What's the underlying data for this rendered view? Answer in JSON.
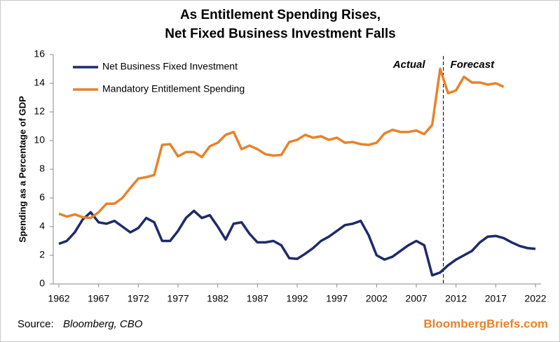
{
  "chart_data": {
    "type": "line",
    "title": [
      "As Entitlement Spending Rises,",
      "Net Fixed Business Investment Falls"
    ],
    "y_label": "Spending as a Percentage of GDP",
    "x": [
      1962,
      1963,
      1964,
      1965,
      1966,
      1967,
      1968,
      1969,
      1970,
      1971,
      1972,
      1973,
      1974,
      1975,
      1976,
      1977,
      1978,
      1979,
      1980,
      1981,
      1982,
      1983,
      1984,
      1985,
      1986,
      1987,
      1988,
      1989,
      1990,
      1991,
      1992,
      1993,
      1994,
      1995,
      1996,
      1997,
      1998,
      1999,
      2000,
      2001,
      2002,
      2003,
      2004,
      2005,
      2006,
      2007,
      2008,
      2009,
      2010,
      2011,
      2012,
      2013,
      2014,
      2015,
      2016,
      2017,
      2018,
      2019,
      2020,
      2021,
      2022
    ],
    "series": [
      {
        "name": "Net Business Fixed Investment",
        "color": "#1f2a6b",
        "values": [
          2.8,
          3.0,
          3.6,
          4.5,
          5.0,
          4.3,
          4.2,
          4.4,
          4.0,
          3.6,
          3.9,
          4.6,
          4.3,
          3.0,
          3.0,
          3.7,
          4.6,
          5.1,
          4.6,
          4.8,
          4.0,
          3.1,
          4.2,
          4.3,
          3.5,
          2.9,
          2.9,
          3.0,
          2.7,
          1.8,
          1.75,
          2.1,
          2.5,
          3.0,
          3.3,
          3.7,
          4.1,
          4.2,
          4.4,
          3.4,
          2.0,
          1.7,
          1.9,
          2.3,
          2.7,
          3.0,
          2.7,
          0.6,
          0.8,
          1.3,
          1.7,
          2.0,
          2.3,
          2.9,
          3.3,
          3.35,
          3.2,
          2.9,
          2.65,
          2.5,
          2.45
        ]
      },
      {
        "name": "Mandatory Entitlement Spending",
        "color": "#e8822a",
        "values": [
          4.9,
          4.7,
          4.85,
          4.65,
          4.6,
          5.0,
          5.6,
          5.6,
          6.0,
          6.7,
          7.35,
          7.45,
          7.6,
          9.7,
          9.75,
          8.9,
          9.2,
          9.2,
          8.85,
          9.6,
          9.85,
          10.4,
          10.6,
          9.4,
          9.65,
          9.4,
          9.05,
          8.95,
          9.0,
          9.9,
          10.05,
          10.4,
          10.2,
          10.3,
          10.05,
          10.2,
          9.85,
          9.9,
          9.75,
          9.7,
          9.85,
          10.5,
          10.75,
          10.6,
          10.6,
          10.7,
          10.45,
          11.1,
          15.0,
          13.3,
          13.5,
          14.45,
          14.05,
          14.05,
          13.9,
          14.0,
          13.75,
          null,
          null,
          null,
          null
        ]
      }
    ],
    "xlim": [
      1962,
      2022
    ],
    "xticks": [
      1962,
      1967,
      1972,
      1977,
      1982,
      1987,
      1992,
      1997,
      2002,
      2007,
      2012,
      2017,
      2022
    ],
    "ylim": [
      0,
      16
    ],
    "yticks": [
      0,
      2,
      4,
      6,
      8,
      10,
      12,
      14,
      16
    ],
    "divider_x": 2010.4,
    "annotations": [
      "Actual",
      "Forecast"
    ],
    "legend": "top-left",
    "source_label": "Source:",
    "source": "Bloomberg, CBO",
    "credit": "BloombergBriefs.com"
  }
}
